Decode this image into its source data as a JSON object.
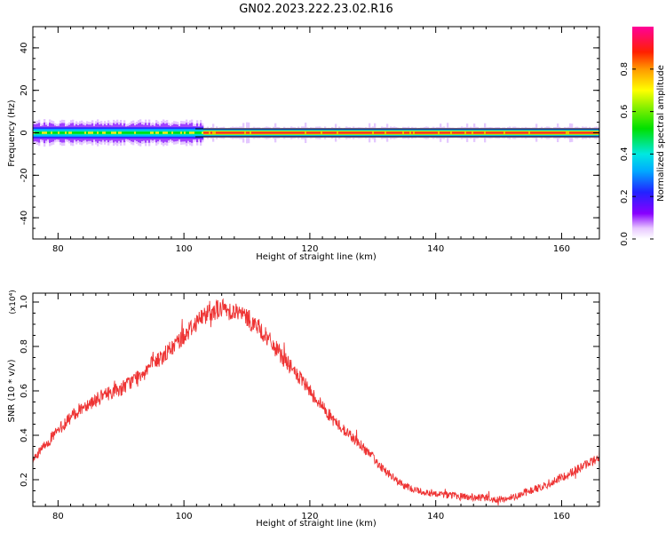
{
  "title": "GN02.2023.222.23.02.R16",
  "chart_data": [
    {
      "type": "heatmap",
      "xlabel": "Height of straight line (km)",
      "ylabel": "Frequency (Hz)",
      "xlim": [
        76,
        166
      ],
      "ylim": [
        -50,
        50
      ],
      "xticks": [
        80,
        100,
        120,
        140,
        160
      ],
      "yticks": [
        -40,
        -20,
        0,
        20,
        40
      ],
      "colorbar": {
        "label": "Normalized spectral amplitude",
        "range": [
          0.0,
          1.0
        ],
        "ticks": [
          0.0,
          0.2,
          0.4,
          0.6,
          0.8
        ],
        "colormap": "rainbow (white → purple → blue → cyan → green → yellow → orange → red → magenta)"
      },
      "band": {
        "center_hz": 0,
        "half_width_hz": 2,
        "note": "Spectral energy concentrated near 0 Hz; broad/noisy (blue–green, halo to ±5 Hz) below ~103 km, narrow high-amplitude (red) core above ~103 km, dips near 132 km and 151 km"
      }
    },
    {
      "type": "line",
      "xlabel": "Height of straight line (km)",
      "ylabel": "SNR (10 * v/v)",
      "y_multiplier": "(x10⁴)",
      "xlim": [
        76,
        166
      ],
      "ylim": [
        0.08,
        1.04
      ],
      "xticks": [
        80,
        100,
        120,
        140,
        160
      ],
      "yticks": [
        0.2,
        0.4,
        0.6,
        0.8,
        1.0
      ],
      "color": "#ee3333",
      "series": [
        {
          "x": [
            76,
            78,
            80,
            82,
            84,
            86,
            88,
            90,
            92,
            94,
            96,
            98,
            100,
            102,
            104,
            106,
            108,
            110,
            112,
            114,
            116,
            118,
            120,
            122,
            124,
            126,
            128,
            130,
            132,
            134,
            136,
            138,
            140,
            142,
            144,
            146,
            148,
            150,
            152,
            154,
            156,
            158,
            160,
            162,
            164,
            166
          ],
          "y": [
            0.28,
            0.36,
            0.42,
            0.48,
            0.53,
            0.56,
            0.59,
            0.61,
            0.65,
            0.7,
            0.74,
            0.79,
            0.85,
            0.91,
            0.96,
            0.97,
            0.96,
            0.93,
            0.88,
            0.81,
            0.74,
            0.67,
            0.6,
            0.53,
            0.46,
            0.41,
            0.36,
            0.3,
            0.24,
            0.19,
            0.16,
            0.145,
            0.14,
            0.13,
            0.125,
            0.12,
            0.115,
            0.11,
            0.12,
            0.14,
            0.16,
            0.18,
            0.21,
            0.24,
            0.27,
            0.3
          ]
        }
      ]
    }
  ]
}
